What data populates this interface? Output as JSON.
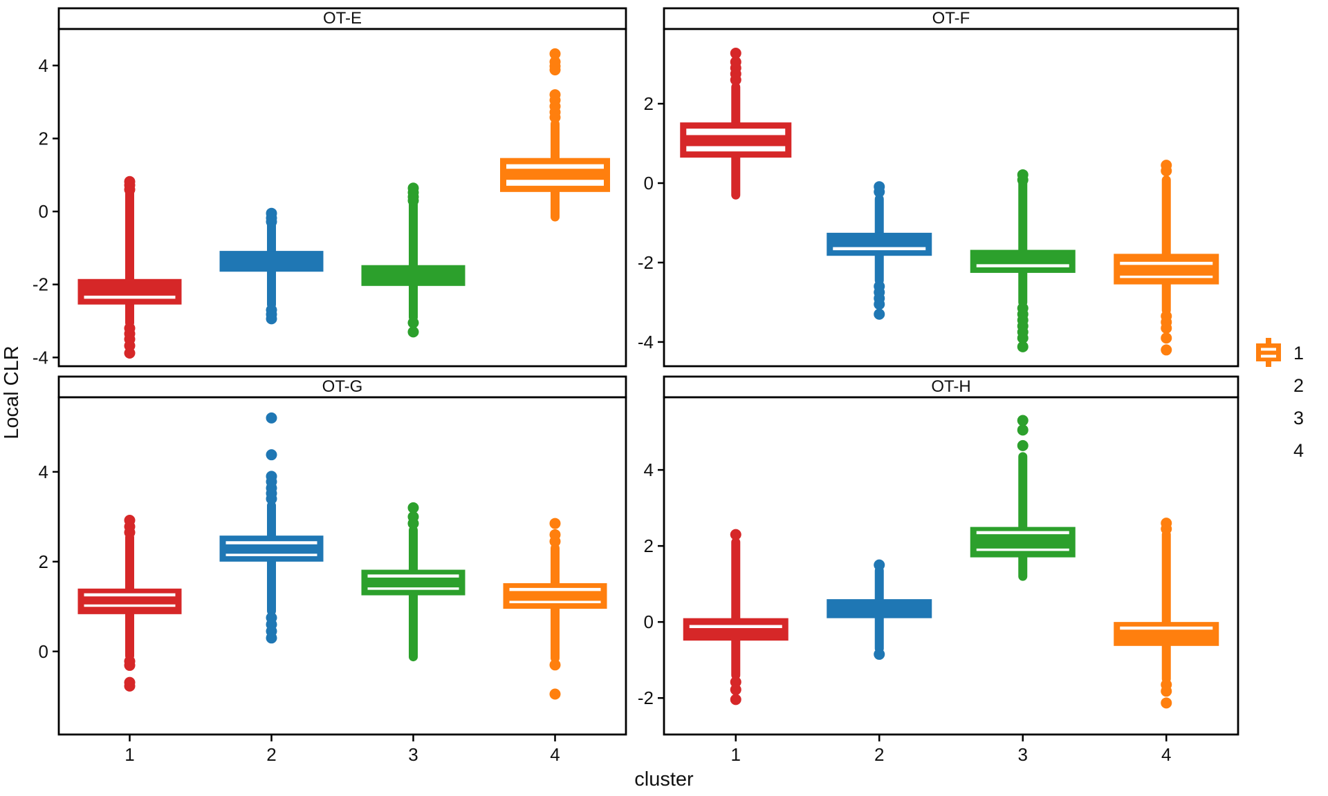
{
  "axis_titles": {
    "y": "Local CLR",
    "x": "cluster"
  },
  "palette": {
    "c1": "#d62728",
    "c2": "#1f77b4",
    "c3": "#2ca02c",
    "c4": "#ff7f0e"
  },
  "legend": {
    "labels": [
      "1",
      "2",
      "3",
      "4"
    ],
    "colors": [
      "#d62728",
      "#1f77b4",
      "#2ca02c",
      "#ff7f0e"
    ]
  },
  "chart_data": [
    {
      "type": "boxplot",
      "title": "OT-E",
      "ylabel": "Local CLR",
      "xlabel": "cluster",
      "grid": false,
      "ylim": [
        -4.24,
        5.0
      ],
      "yticks": [
        -4,
        -2,
        0,
        2,
        4
      ],
      "xticks": [
        "1",
        "2",
        "3",
        "4"
      ],
      "boxes": [
        {
          "cluster": "1",
          "color": "#d62728",
          "style": "solid",
          "q1": -2.55,
          "median": [
            -2.35
          ],
          "q3": -1.85,
          "whisker_column": [
            -3.05,
            0.5
          ],
          "outliers_above": [
            0.6,
            0.72,
            0.82
          ],
          "outliers_below": [
            -3.2,
            -3.35,
            -3.5,
            -3.68,
            -3.88
          ]
        },
        {
          "cluster": "2",
          "color": "#1f77b4",
          "style": "solid",
          "q1": -1.65,
          "median": [],
          "q3": -1.08,
          "whisker_column": [
            -2.55,
            -0.38
          ],
          "outliers_above": [
            -0.28,
            -0.18,
            -0.05
          ],
          "outliers_below": [
            -2.7,
            -2.82,
            -2.94
          ]
        },
        {
          "cluster": "3",
          "color": "#2ca02c",
          "style": "solid",
          "q1": -2.04,
          "median": [],
          "q3": -1.47,
          "whisker_column": [
            -2.9,
            0.2
          ],
          "outliers_above": [
            0.3,
            0.4,
            0.52,
            0.64
          ],
          "outliers_below": [
            -3.05,
            -3.3
          ]
        },
        {
          "cluster": "4",
          "color": "#ff7f0e",
          "style": "open",
          "q1": 0.62,
          "median": [
            1.02
          ],
          "q3": 1.38,
          "whisker_column": [
            -0.15,
            2.4
          ],
          "outliers_above": [
            2.58,
            2.72,
            2.88,
            3.05,
            3.2,
            3.88,
            3.98,
            4.1,
            4.32
          ],
          "outliers_below": []
        }
      ]
    },
    {
      "type": "boxplot",
      "title": "OT-F",
      "ylabel": "Local CLR",
      "xlabel": "cluster",
      "grid": false,
      "ylim": [
        -4.61,
        3.88
      ],
      "yticks": [
        -4,
        -2,
        0,
        2
      ],
      "xticks": [
        "1",
        "2",
        "3",
        "4"
      ],
      "boxes": [
        {
          "cluster": "1",
          "color": "#d62728",
          "style": "open",
          "q1": 0.72,
          "median": [
            1.07
          ],
          "q3": 1.45,
          "whisker_column": [
            -0.3,
            2.42
          ],
          "outliers_above": [
            2.6,
            2.75,
            2.9,
            3.05,
            3.27
          ],
          "outliers_below": []
        },
        {
          "cluster": "2",
          "color": "#1f77b4",
          "style": "solid",
          "q1": -1.83,
          "median": [
            -1.65
          ],
          "q3": -1.25,
          "whisker_column": [
            -2.45,
            -0.4
          ],
          "outliers_above": [
            -0.22,
            -0.09
          ],
          "outliers_below": [
            -2.6,
            -2.75,
            -2.9,
            -3.05,
            -3.3
          ]
        },
        {
          "cluster": "3",
          "color": "#2ca02c",
          "style": "solid",
          "q1": -2.26,
          "median": [
            -2.08
          ],
          "q3": -1.68,
          "whisker_column": [
            -3.0,
            0.0
          ],
          "outliers_above": [
            0.08,
            0.21
          ],
          "outliers_below": [
            -3.15,
            -3.3,
            -3.45,
            -3.6,
            -3.75,
            -3.9,
            -4.12
          ]
        },
        {
          "cluster": "4",
          "color": "#ff7f0e",
          "style": "solid",
          "q1": -2.55,
          "median": [
            -2.02,
            -2.36
          ],
          "q3": -1.78,
          "whisker_column": [
            -3.2,
            0.08
          ],
          "outliers_above": [
            0.31,
            0.45
          ],
          "outliers_below": [
            -3.35,
            -3.5,
            -3.65,
            -3.9,
            -4.2
          ]
        }
      ]
    },
    {
      "type": "boxplot",
      "title": "OT-G",
      "ylabel": "Local CLR",
      "xlabel": "cluster",
      "grid": false,
      "ylim": [
        -1.85,
        5.66
      ],
      "yticks": [
        0,
        2,
        4
      ],
      "xticks": [
        "1",
        "2",
        "3",
        "4"
      ],
      "boxes": [
        {
          "cluster": "1",
          "color": "#d62728",
          "style": "solid",
          "q1": 0.83,
          "median": [
            1.26,
            1.02
          ],
          "q3": 1.4,
          "whisker_column": [
            -0.1,
            2.54
          ],
          "outliers_above": [
            2.65,
            2.78,
            2.92
          ],
          "outliers_below": [
            -0.22,
            -0.31,
            -0.69,
            -0.77
          ]
        },
        {
          "cluster": "2",
          "color": "#1f77b4",
          "style": "solid",
          "q1": 2.0,
          "median": [
            2.42,
            2.15
          ],
          "q3": 2.58,
          "whisker_column": [
            0.9,
            3.25
          ],
          "outliers_above": [
            3.4,
            3.52,
            3.64,
            3.78,
            3.9,
            4.38,
            5.2
          ],
          "outliers_below": [
            0.75,
            0.6,
            0.45,
            0.3
          ]
        },
        {
          "cluster": "3",
          "color": "#2ca02c",
          "style": "solid",
          "q1": 1.25,
          "median": [
            1.68,
            1.4
          ],
          "q3": 1.82,
          "whisker_column": [
            -0.12,
            2.7
          ],
          "outliers_above": [
            2.85,
            3.0,
            3.2
          ],
          "outliers_below": []
        },
        {
          "cluster": "4",
          "color": "#ff7f0e",
          "style": "solid",
          "q1": 0.95,
          "median": [
            1.38,
            1.1
          ],
          "q3": 1.52,
          "whisker_column": [
            -0.15,
            2.3
          ],
          "outliers_above": [
            2.45,
            2.6,
            2.85
          ],
          "outliers_below": [
            -0.3,
            -0.95
          ]
        }
      ]
    },
    {
      "type": "boxplot",
      "title": "OT-H",
      "ylabel": "Local CLR",
      "xlabel": "cluster",
      "grid": false,
      "ylim": [
        -2.96,
        5.91
      ],
      "yticks": [
        -2,
        0,
        2,
        4
      ],
      "xticks": [
        "1",
        "2",
        "3",
        "4"
      ],
      "boxes": [
        {
          "cluster": "1",
          "color": "#d62728",
          "style": "solid",
          "q1": -0.49,
          "median": [
            -0.12
          ],
          "q3": 0.1,
          "whisker_column": [
            -1.4,
            2.1
          ],
          "outliers_above": [
            2.3
          ],
          "outliers_below": [
            -1.58,
            -1.78,
            -2.04
          ]
        },
        {
          "cluster": "2",
          "color": "#1f77b4",
          "style": "solid",
          "q1": 0.1,
          "median": [],
          "q3": 0.6,
          "whisker_column": [
            -0.7,
            1.35
          ],
          "outliers_above": [
            1.5
          ],
          "outliers_below": [
            -0.85
          ]
        },
        {
          "cluster": "3",
          "color": "#2ca02c",
          "style": "solid",
          "q1": 1.7,
          "median": [
            2.35,
            1.9
          ],
          "q3": 2.5,
          "whisker_column": [
            1.2,
            4.35
          ],
          "outliers_above": [
            4.64,
            5.05,
            5.3
          ],
          "outliers_below": []
        },
        {
          "cluster": "4",
          "color": "#ff7f0e",
          "style": "solid",
          "q1": -0.63,
          "median": [
            -0.16
          ],
          "q3": 0.0,
          "whisker_column": [
            -1.5,
            2.3
          ],
          "outliers_above": [
            2.45,
            2.6
          ],
          "outliers_below": [
            -1.65,
            -1.82,
            -2.13
          ]
        }
      ]
    }
  ]
}
